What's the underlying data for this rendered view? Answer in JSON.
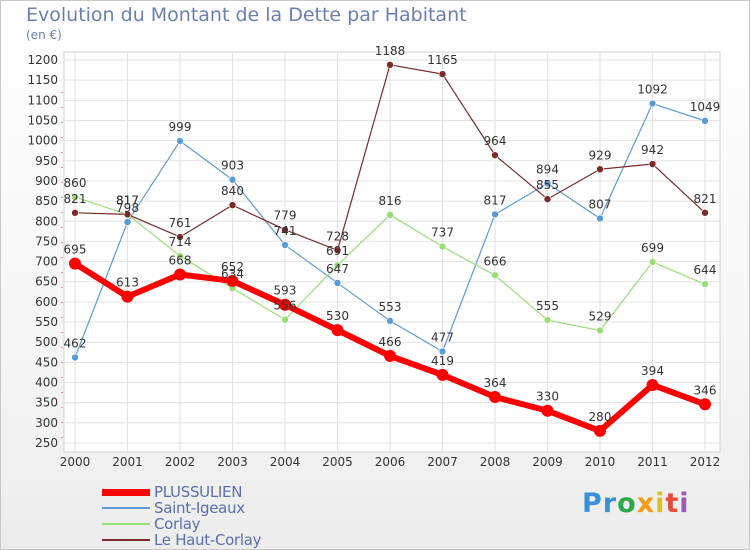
{
  "chart_data": {
    "type": "line",
    "title": "Evolution du Montant de la Dette par Habitant",
    "subtitle": "(en €)",
    "x": [
      "2000",
      "2001",
      "2002",
      "2003",
      "2004",
      "2005",
      "2006",
      "2007",
      "2008",
      "2009",
      "2010",
      "2011",
      "2012"
    ],
    "ylim": [
      250,
      1200
    ],
    "yticks": [
      250,
      300,
      350,
      400,
      450,
      500,
      550,
      600,
      650,
      700,
      750,
      800,
      850,
      900,
      950,
      1000,
      1050,
      1100,
      1150,
      1200
    ],
    "grid": true,
    "legend_position": "bottom-left",
    "series": [
      {
        "name": "PLUSSULIEN",
        "color": "#ff0000",
        "width": 6,
        "values": [
          695,
          613,
          668,
          652,
          593,
          530,
          466,
          419,
          364,
          330,
          280,
          394,
          346
        ]
      },
      {
        "name": "Saint-Igeaux",
        "color": "#5b9bd5",
        "width": 1.2,
        "values": [
          462,
          798,
          999,
          903,
          741,
          647,
          553,
          477,
          817,
          894,
          807,
          1092,
          1049
        ]
      },
      {
        "name": "Corlay",
        "color": "#99dd77",
        "width": 1.2,
        "values": [
          860,
          817,
          714,
          634,
          556,
          691,
          816,
          737,
          666,
          555,
          529,
          699,
          644
        ]
      },
      {
        "name": "Le Haut-Corlay",
        "color": "#7a2a2a",
        "width": 1.2,
        "values": [
          821,
          817,
          761,
          840,
          779,
          728,
          1188,
          1165,
          964,
          855,
          929,
          942,
          821
        ]
      }
    ]
  },
  "brand": {
    "letters": [
      {
        "char": "P",
        "color": "#3a8fd9"
      },
      {
        "char": "r",
        "color": "#3a8fd9"
      },
      {
        "char": "o",
        "color": "#2aa84a"
      },
      {
        "char": "x",
        "color": "#f39c12"
      },
      {
        "char": "i",
        "color": "#e0c020"
      },
      {
        "char": "t",
        "color": "#e74c3c"
      },
      {
        "char": "i",
        "color": "#9b59b6"
      }
    ]
  }
}
